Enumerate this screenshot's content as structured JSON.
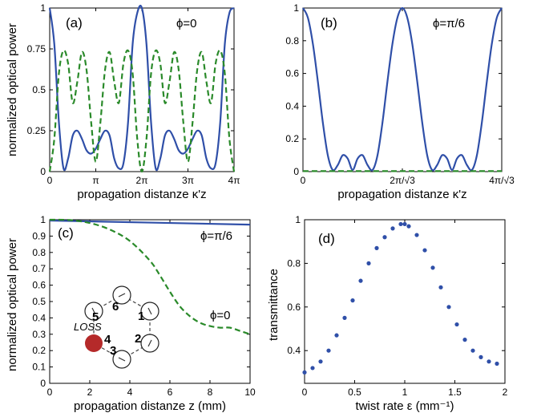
{
  "chart_data": [
    {
      "id": "a",
      "type": "line",
      "panel_label": "(a)",
      "annotation": "ϕ=0",
      "xlabel": "propagation distanze κ'z",
      "ylabel": "normalized optical power",
      "xlim": [
        0,
        4
      ],
      "ylim": [
        0,
        1
      ],
      "x_ticks": [
        {
          "v": 0,
          "label": "0"
        },
        {
          "v": 1,
          "label": "π"
        },
        {
          "v": 2,
          "label": "2π"
        },
        {
          "v": 3,
          "label": "3π"
        },
        {
          "v": 4,
          "label": "4π"
        }
      ],
      "y_ticks": [
        0,
        0.25,
        0.5,
        0.75,
        1
      ],
      "grid": false,
      "series": [
        {
          "style": "solid",
          "color": "#2f4fa8",
          "x": [
            0,
            0.1,
            0.2,
            0.3,
            0.4,
            0.5,
            0.6,
            0.7,
            0.8,
            0.9,
            1.0,
            1.1,
            1.2,
            1.3,
            1.4,
            1.5,
            1.6,
            1.7,
            1.8,
            1.9,
            2.0,
            2.1,
            2.2,
            2.3,
            2.4,
            2.5,
            2.6,
            2.7,
            2.8,
            2.9,
            3.0,
            3.1,
            3.2,
            3.3,
            3.4,
            3.5,
            3.6,
            3.7,
            3.8,
            3.9,
            4.0
          ],
          "y": [
            1,
            0.78,
            0.3,
            0.02,
            0.08,
            0.22,
            0.25,
            0.2,
            0.13,
            0.11,
            0.14,
            0.2,
            0.25,
            0.22,
            0.08,
            0.02,
            0.05,
            0.3,
            0.78,
            0.97,
            1,
            0.78,
            0.3,
            0.02,
            0.08,
            0.22,
            0.25,
            0.2,
            0.13,
            0.11,
            0.14,
            0.2,
            0.25,
            0.22,
            0.08,
            0.02,
            0.05,
            0.3,
            0.78,
            0.97,
            1
          ]
        },
        {
          "style": "dashed",
          "color": "#2a8a2a",
          "x": [
            0,
            0.1,
            0.2,
            0.3,
            0.4,
            0.5,
            0.6,
            0.7,
            0.8,
            0.9,
            1.0,
            1.1,
            1.2,
            1.3,
            1.4,
            1.5,
            1.6,
            1.7,
            1.8,
            1.9,
            2.0,
            2.1,
            2.2,
            2.3,
            2.4,
            2.5,
            2.6,
            2.7,
            2.8,
            2.9,
            3.0,
            3.1,
            3.2,
            3.3,
            3.4,
            3.5,
            3.6,
            3.7,
            3.8,
            3.9,
            4.0
          ],
          "y": [
            0,
            0.2,
            0.6,
            0.74,
            0.66,
            0.42,
            0.55,
            0.73,
            0.62,
            0.3,
            0.06,
            0.3,
            0.62,
            0.73,
            0.55,
            0.42,
            0.66,
            0.74,
            0.6,
            0.2,
            0,
            0.2,
            0.6,
            0.74,
            0.66,
            0.42,
            0.55,
            0.73,
            0.62,
            0.3,
            0.06,
            0.3,
            0.62,
            0.73,
            0.55,
            0.42,
            0.66,
            0.74,
            0.6,
            0.2,
            0
          ]
        }
      ]
    },
    {
      "id": "b",
      "type": "line",
      "panel_label": "(b)",
      "annotation": "ϕ=π/6",
      "xlabel": "propagation distanze κ'z",
      "ylabel": "",
      "xlim": [
        0,
        4
      ],
      "ylim": [
        0,
        1
      ],
      "x_ticks": [
        {
          "v": 0,
          "label": "0"
        },
        {
          "v": 2,
          "label": "2π/√3"
        },
        {
          "v": 4,
          "label": "4π/√3"
        }
      ],
      "y_ticks": [
        0,
        0.2,
        0.4,
        0.6,
        0.8,
        1
      ],
      "grid": false,
      "series": [
        {
          "style": "solid",
          "color": "#2f4fa8",
          "x": [
            0,
            0.1,
            0.2,
            0.3,
            0.4,
            0.5,
            0.6,
            0.7,
            0.8,
            0.9,
            1.0,
            1.1,
            1.2,
            1.3,
            1.4,
            1.5,
            1.6,
            1.7,
            1.8,
            1.9,
            2.0,
            2.1,
            2.2,
            2.3,
            2.4,
            2.5,
            2.6,
            2.7,
            2.8,
            2.9,
            3.0,
            3.1,
            3.2,
            3.3,
            3.4,
            3.5,
            3.6,
            3.7,
            3.8,
            3.9,
            4.0
          ],
          "y": [
            1,
            0.94,
            0.78,
            0.55,
            0.3,
            0.1,
            0.01,
            0.04,
            0.1,
            0.08,
            0.01,
            0.08,
            0.1,
            0.04,
            0.01,
            0.1,
            0.3,
            0.55,
            0.78,
            0.94,
            1,
            0.94,
            0.78,
            0.55,
            0.3,
            0.1,
            0.01,
            0.04,
            0.1,
            0.08,
            0.01,
            0.08,
            0.1,
            0.04,
            0.01,
            0.1,
            0.3,
            0.55,
            0.78,
            0.94,
            1
          ]
        },
        {
          "style": "dashed",
          "color": "#2a8a2a",
          "x": [
            0,
            4
          ],
          "y": [
            0.003,
            0.003
          ]
        }
      ]
    },
    {
      "id": "c",
      "type": "line",
      "panel_label": "(c)",
      "annotations": [
        "ϕ=π/6",
        "ϕ=0"
      ],
      "xlabel": "propagation distanze z (mm)",
      "ylabel": "normalized optical power",
      "xlim": [
        0,
        10
      ],
      "ylim": [
        0,
        1
      ],
      "x_ticks": [
        0,
        2,
        4,
        6,
        8,
        10
      ],
      "y_ticks": [
        0,
        0.1,
        0.2,
        0.3,
        0.4,
        0.5,
        0.6,
        0.7,
        0.8,
        0.9,
        1
      ],
      "grid": false,
      "series": [
        {
          "style": "solid",
          "color": "#2f4fa8",
          "x": [
            0,
            10
          ],
          "y": [
            0.995,
            0.97
          ]
        },
        {
          "style": "dashed",
          "color": "#2a8a2a",
          "x": [
            0,
            1,
            2,
            3,
            4,
            5,
            5.5,
            6,
            6.5,
            7,
            7.5,
            8,
            8.5,
            9,
            9.5,
            10
          ],
          "y": [
            1,
            0.998,
            0.98,
            0.94,
            0.87,
            0.75,
            0.66,
            0.56,
            0.47,
            0.41,
            0.37,
            0.35,
            0.34,
            0.34,
            0.32,
            0.3
          ]
        }
      ],
      "inset": {
        "site_labels": [
          "1",
          "2",
          "3",
          "4",
          "5",
          "6"
        ],
        "loss_label": "LOSS",
        "loss_site": "4",
        "loss_color": "#b52a2a"
      }
    },
    {
      "id": "d",
      "type": "scatter",
      "panel_label": "(d)",
      "xlabel": "twist rate ε (mm⁻¹)",
      "ylabel": "transmittance",
      "xlim": [
        0,
        2
      ],
      "ylim": [
        0.25,
        1
      ],
      "x_ticks": [
        0,
        0.5,
        1,
        1.5,
        2
      ],
      "y_ticks": [
        0.4,
        0.6,
        0.8,
        1
      ],
      "grid": false,
      "series": [
        {
          "color": "#2f4fa8",
          "x": [
            0,
            0.08,
            0.16,
            0.24,
            0.32,
            0.4,
            0.48,
            0.56,
            0.64,
            0.72,
            0.8,
            0.88,
            0.96,
            1.0,
            1.04,
            1.12,
            1.2,
            1.28,
            1.36,
            1.44,
            1.52,
            1.6,
            1.68,
            1.76,
            1.84,
            1.92
          ],
          "y": [
            0.3,
            0.32,
            0.35,
            0.4,
            0.47,
            0.55,
            0.63,
            0.72,
            0.8,
            0.87,
            0.92,
            0.96,
            0.98,
            0.98,
            0.97,
            0.93,
            0.86,
            0.78,
            0.69,
            0.6,
            0.52,
            0.45,
            0.4,
            0.37,
            0.35,
            0.34
          ]
        }
      ]
    }
  ]
}
